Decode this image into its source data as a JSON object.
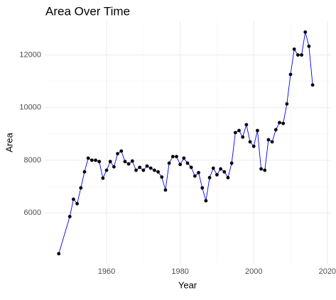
{
  "chart_data": {
    "type": "line",
    "title": "Area Over Time",
    "x_label": "Year",
    "y_label": "Area",
    "x": [
      1947,
      1950,
      1951,
      1952,
      1953,
      1954,
      1955,
      1956,
      1957,
      1958,
      1959,
      1960,
      1961,
      1962,
      1963,
      1964,
      1965,
      1966,
      1967,
      1968,
      1969,
      1970,
      1971,
      1972,
      1973,
      1974,
      1975,
      1976,
      1977,
      1978,
      1979,
      1980,
      1981,
      1982,
      1983,
      1984,
      1985,
      1986,
      1987,
      1988,
      1989,
      1990,
      1991,
      1992,
      1993,
      1994,
      1995,
      1996,
      1997,
      1998,
      1999,
      2000,
      2001,
      2002,
      2003,
      2004,
      2005,
      2006,
      2007,
      2008,
      2009,
      2010,
      2011,
      2012,
      2013,
      2014,
      2015,
      2016
    ],
    "series": [
      {
        "name": "Area",
        "color": "#0000ff",
        "marker_color": "#000000",
        "values": [
          4450,
          5860,
          6520,
          6350,
          6950,
          7560,
          8080,
          8000,
          8000,
          7950,
          7320,
          7620,
          7950,
          7750,
          8250,
          8350,
          7950,
          7860,
          7970,
          7620,
          7730,
          7620,
          7780,
          7700,
          7620,
          7560,
          7360,
          6870,
          7890,
          8140,
          8140,
          7840,
          8080,
          7890,
          7730,
          7400,
          7530,
          6950,
          6460,
          7340,
          7700,
          7450,
          7670,
          7560,
          7340,
          7890,
          9050,
          9130,
          8880,
          9350,
          8700,
          8530,
          9130,
          7670,
          7620,
          8780,
          8700,
          9160,
          9430,
          9400,
          10140,
          11260,
          12220,
          12000,
          12000,
          12870,
          12330,
          10860
        ]
      }
    ],
    "xlim": [
      1943,
      2021
    ],
    "xticks": [
      1960,
      1980,
      2000,
      2020
    ],
    "ylim": [
      4065,
      13280
    ],
    "yticks": [
      6000,
      8000,
      10000,
      12000
    ],
    "grid": true
  }
}
